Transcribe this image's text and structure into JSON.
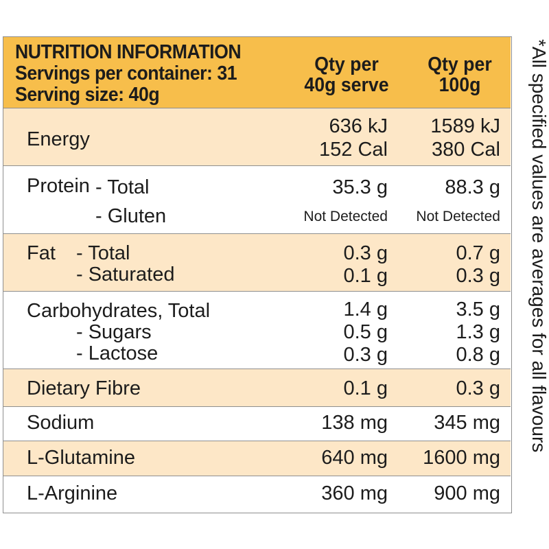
{
  "header": {
    "title": "NUTRITION INFORMATION",
    "servings": "Servings per container: 31",
    "serving_size": "Serving size: 40g",
    "col1_line1": "Qty per",
    "col1_line2": "40g serve",
    "col2_line1": "Qty per",
    "col2_line2": "100g"
  },
  "side_note": "*All specified values are averages for all flavours",
  "colors": {
    "header_bg": "#f7be4b",
    "tint_row_bg": "#fde7c7",
    "border": "#8e8e8e"
  },
  "rows": {
    "energy": {
      "label": "Energy",
      "col1": [
        "636 kJ",
        "152 Cal"
      ],
      "col2": [
        "1589 kJ",
        "380 Cal"
      ]
    },
    "protein": {
      "label": "Protein",
      "total_label": "- Total",
      "gluten_label": "- Gluten",
      "col1": [
        "35.3 g",
        "Not Detected"
      ],
      "col2": [
        "88.3 g",
        "Not Detected"
      ]
    },
    "fat": {
      "label": "Fat",
      "total_label": "- Total",
      "saturated_label": "- Saturated",
      "col1": [
        "0.3 g",
        "0.1 g"
      ],
      "col2": [
        "0.7 g",
        "0.3 g"
      ]
    },
    "carbs": {
      "label": "Carbohydrates, Total",
      "sugars_label": "- Sugars",
      "lactose_label": "- Lactose",
      "col1": [
        "1.4 g",
        "0.5 g",
        "0.3 g"
      ],
      "col2": [
        "3.5 g",
        "1.3 g",
        "0.8 g"
      ]
    },
    "fibre": {
      "label": "Dietary Fibre",
      "col1": "0.1 g",
      "col2": "0.3 g"
    },
    "sodium": {
      "label": "Sodium",
      "col1": "138 mg",
      "col2": "345 mg"
    },
    "glutamine": {
      "label": "L-Glutamine",
      "col1": "640 mg",
      "col2": "1600 mg"
    },
    "arginine": {
      "label": "L-Arginine",
      "col1": "360 mg",
      "col2": "900 mg"
    }
  }
}
